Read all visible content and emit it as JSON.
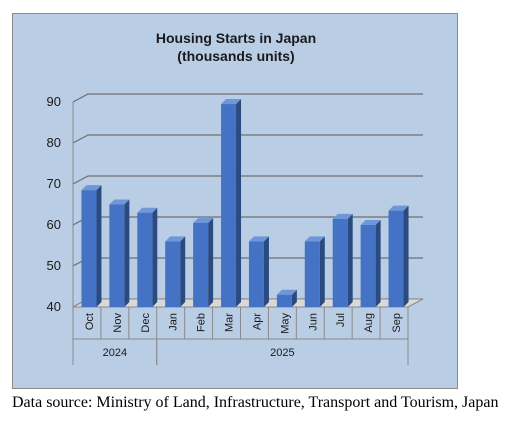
{
  "chart_data": {
    "type": "bar",
    "title": "Housing Starts in Japan",
    "subtitle": "(thousands units)",
    "categories": [
      "Oct",
      "Nov",
      "Dec",
      "Jan",
      "Feb",
      "Mar",
      "Apr",
      "May",
      "Jun",
      "Jul",
      "Aug",
      "Sep"
    ],
    "groups": [
      {
        "label": "2024",
        "categories": [
          "Oct",
          "Nov",
          "Dec"
        ]
      },
      {
        "label": "2025",
        "categories": [
          "Jan",
          "Feb",
          "Mar",
          "Apr",
          "May",
          "Jun",
          "Jul",
          "Aug",
          "Sep"
        ]
      }
    ],
    "values": [
      68.5,
      65,
      63,
      56,
      60.5,
      89.5,
      56,
      43,
      56,
      61.5,
      60,
      63.5
    ],
    "ylim": [
      40,
      90
    ],
    "yticks": [
      40,
      50,
      60,
      70,
      80,
      90
    ],
    "grid": true,
    "style": "3d-column",
    "colors": {
      "bar": "#4472c4",
      "plot_background": "#b9cde5"
    }
  },
  "source_note": "Data source: Ministry of Land, Infrastructure, Transport and Tourism, Japan"
}
